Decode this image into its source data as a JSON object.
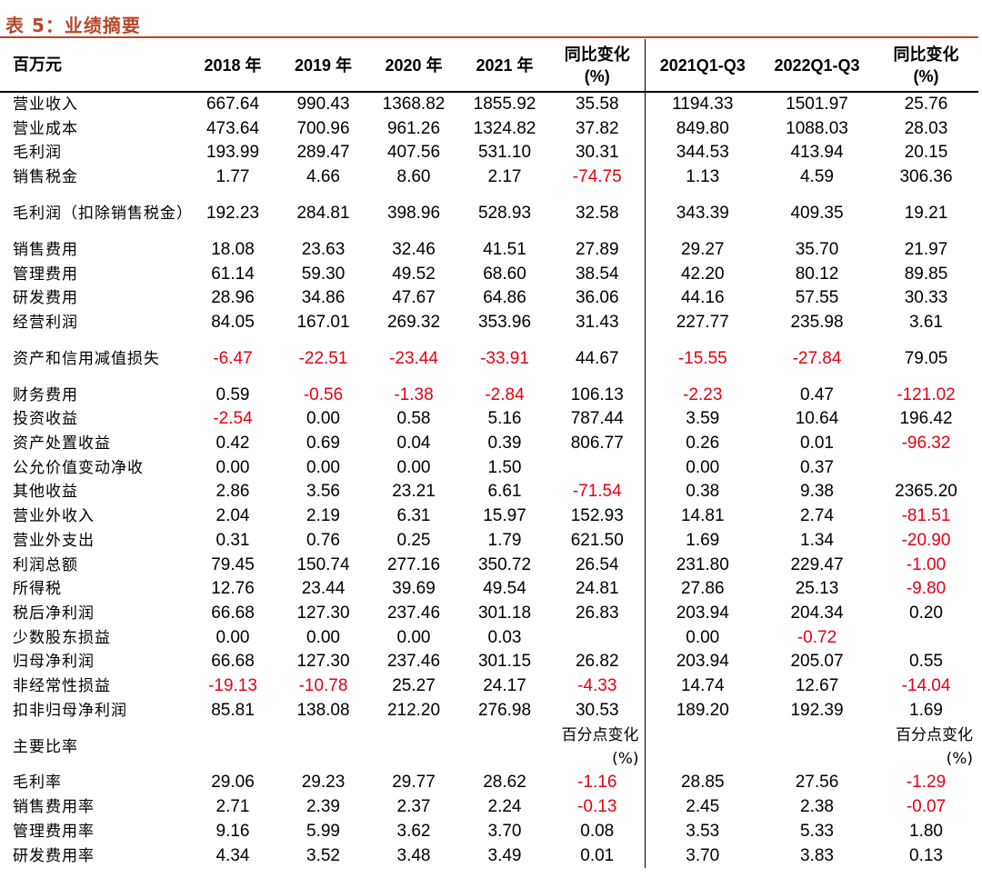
{
  "title": "表 5：业绩摘要",
  "header": {
    "label": "百万元",
    "cols": [
      "2018 年",
      "2019 年",
      "2020 年",
      "2021 年",
      "同比变化\n(%)",
      "2021Q1-Q3",
      "2022Q1-Q3",
      "同比变化\n(%)"
    ]
  },
  "colors": {
    "title": "#b7472a",
    "negative": "#e60012"
  },
  "rows": [
    {
      "label": "营业收入",
      "values": [
        "667.64",
        "990.43",
        "1368.82",
        "1855.92",
        "35.58",
        "1194.33",
        "1501.97",
        "25.76"
      ]
    },
    {
      "label": "营业成本",
      "values": [
        "473.64",
        "700.96",
        "961.26",
        "1324.82",
        "37.82",
        "849.80",
        "1088.03",
        "28.03"
      ]
    },
    {
      "label": "毛利润",
      "values": [
        "193.99",
        "289.47",
        "407.56",
        "531.10",
        "30.31",
        "344.53",
        "413.94",
        "20.15"
      ]
    },
    {
      "label": "销售税金",
      "values": [
        "1.77",
        "4.66",
        "8.60",
        "2.17",
        "-74.75",
        "1.13",
        "4.59",
        "306.36"
      ]
    },
    {
      "label": "毛利润（扣除销售税金）",
      "values": [
        "192.23",
        "284.81",
        "398.96",
        "528.93",
        "32.58",
        "343.39",
        "409.35",
        "19.21"
      ],
      "tall": true
    },
    {
      "label": "销售费用",
      "values": [
        "18.08",
        "23.63",
        "32.46",
        "41.51",
        "27.89",
        "29.27",
        "35.70",
        "21.97"
      ]
    },
    {
      "label": "管理费用",
      "values": [
        "61.14",
        "59.30",
        "49.52",
        "68.60",
        "38.54",
        "42.20",
        "80.12",
        "89.85"
      ]
    },
    {
      "label": "研发费用",
      "values": [
        "28.96",
        "34.86",
        "47.67",
        "64.86",
        "36.06",
        "44.16",
        "57.55",
        "30.33"
      ]
    },
    {
      "label": "经营利润",
      "values": [
        "84.05",
        "167.01",
        "269.32",
        "353.96",
        "31.43",
        "227.77",
        "235.98",
        "3.61"
      ]
    },
    {
      "label": "资产和信用减值损失",
      "values": [
        "-6.47",
        "-22.51",
        "-23.44",
        "-33.91",
        "44.67",
        "-15.55",
        "-27.84",
        "79.05"
      ],
      "tall": true
    },
    {
      "label": "财务费用",
      "values": [
        "0.59",
        "-0.56",
        "-1.38",
        "-2.84",
        "106.13",
        "-2.23",
        "0.47",
        "-121.02"
      ]
    },
    {
      "label": "投资收益",
      "values": [
        "-2.54",
        "0.00",
        "0.58",
        "5.16",
        "787.44",
        "3.59",
        "10.64",
        "196.42"
      ]
    },
    {
      "label": "资产处置收益",
      "values": [
        "0.42",
        "0.69",
        "0.04",
        "0.39",
        "806.77",
        "0.26",
        "0.01",
        "-96.32"
      ]
    },
    {
      "label": "公允价值变动净收",
      "values": [
        "0.00",
        "0.00",
        "0.00",
        "1.50",
        "",
        "0.00",
        "0.37",
        ""
      ]
    },
    {
      "label": "其他收益",
      "values": [
        "2.86",
        "3.56",
        "23.21",
        "6.61",
        "-71.54",
        "0.38",
        "9.38",
        "2365.20"
      ]
    },
    {
      "label": "营业外收入",
      "values": [
        "2.04",
        "2.19",
        "6.31",
        "15.97",
        "152.93",
        "14.81",
        "2.74",
        "-81.51"
      ]
    },
    {
      "label": "营业外支出",
      "values": [
        "0.31",
        "0.76",
        "0.25",
        "1.79",
        "621.50",
        "1.69",
        "1.34",
        "-20.90"
      ]
    },
    {
      "label": "利润总额",
      "values": [
        "79.45",
        "150.74",
        "277.16",
        "350.72",
        "26.54",
        "231.80",
        "229.47",
        "-1.00"
      ]
    },
    {
      "label": "所得税",
      "values": [
        "12.76",
        "23.44",
        "39.69",
        "49.54",
        "24.81",
        "27.86",
        "25.13",
        "-9.80"
      ]
    },
    {
      "label": "税后净利润",
      "values": [
        "66.68",
        "127.30",
        "237.46",
        "301.18",
        "26.83",
        "203.94",
        "204.34",
        "0.20"
      ]
    },
    {
      "label": "少数股东损益",
      "values": [
        "0.00",
        "0.00",
        "0.00",
        "0.03",
        "",
        "0.00",
        "-0.72",
        ""
      ]
    },
    {
      "label": "归母净利润",
      "values": [
        "66.68",
        "127.30",
        "237.46",
        "301.15",
        "26.82",
        "203.94",
        "205.07",
        "0.55"
      ]
    },
    {
      "label": "非经常性损益",
      "values": [
        "-19.13",
        "-10.78",
        "25.27",
        "24.17",
        "-4.33",
        "14.74",
        "12.67",
        "-14.04"
      ]
    },
    {
      "label": "扣非归母净利润",
      "values": [
        "85.81",
        "138.08",
        "212.20",
        "276.98",
        "30.53",
        "189.20",
        "192.39",
        "1.69"
      ]
    },
    {
      "label": "主要比率",
      "values": [
        "",
        "",
        "",
        "",
        "百分点变化(%)",
        "",
        "",
        "百分点变化(%)"
      ],
      "tall": true,
      "section": true
    },
    {
      "label": "毛利率",
      "values": [
        "29.06",
        "29.23",
        "29.77",
        "28.62",
        "-1.16",
        "28.85",
        "27.56",
        "-1.29"
      ]
    },
    {
      "label": "销售费用率",
      "values": [
        "2.71",
        "2.39",
        "2.37",
        "2.24",
        "-0.13",
        "2.45",
        "2.38",
        "-0.07"
      ]
    },
    {
      "label": "管理费用率",
      "values": [
        "9.16",
        "5.99",
        "3.62",
        "3.70",
        "0.08",
        "3.53",
        "5.33",
        "1.80"
      ]
    },
    {
      "label": "研发费用率",
      "values": [
        "4.34",
        "3.52",
        "3.48",
        "3.49",
        "0.01",
        "3.70",
        "3.83",
        "0.13"
      ]
    }
  ]
}
